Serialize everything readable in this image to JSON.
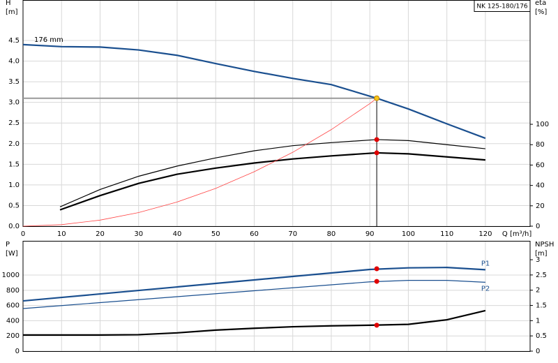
{
  "chart_data": [
    {
      "type": "line",
      "title": "NK 125-180/176",
      "ylabel": "H",
      "yunit": "[m]",
      "y2label": "eta",
      "y2unit": "[%]",
      "xlabel": "Q [m³/h]",
      "annotation": "176 mm",
      "xlim": [
        0,
        131.6
      ],
      "xticks": [
        0,
        10,
        20,
        30,
        40,
        50,
        60,
        70,
        80,
        90,
        100,
        110,
        120
      ],
      "ylim": [
        0,
        5.48
      ],
      "yticks": [
        {
          "value": 0,
          "label": "0.0"
        },
        0.5,
        {
          "value": 1,
          "label": "1.0"
        },
        1.5,
        {
          "value": 2,
          "label": "2.0"
        },
        2.5,
        {
          "value": 3,
          "label": "3.0"
        },
        3.5,
        {
          "value": 4,
          "label": "4.0"
        },
        4.5
      ],
      "y2lim": [
        0,
        222
      ],
      "y2ticks": [
        0,
        20,
        40,
        60,
        80,
        100
      ],
      "grid": true,
      "series": [
        {
          "color": "#1a4f8f",
          "weight": "bold",
          "x": [
            0,
            10,
            20,
            30,
            40,
            50,
            60,
            70,
            80,
            90,
            91.8,
            100,
            110,
            120
          ],
          "values": [
            4.4,
            4.35,
            4.34,
            4.27,
            4.14,
            3.94,
            3.75,
            3.58,
            3.43,
            3.15,
            3.1,
            2.84,
            2.48,
            2.13
          ]
        },
        {
          "color": "#000000",
          "weight": "normal",
          "axis": "y2",
          "x": [
            9.6,
            20,
            30,
            40,
            50,
            60,
            70,
            80,
            91.8,
            100,
            110,
            120
          ],
          "values": [
            19,
            36,
            49,
            59,
            67,
            74,
            79,
            82,
            85,
            84,
            80,
            76
          ]
        },
        {
          "color": "#000000",
          "weight": "bold",
          "axis": "y2",
          "x": [
            9.6,
            20,
            30,
            40,
            50,
            60,
            70,
            80,
            91.8,
            100,
            110,
            120
          ],
          "values": [
            16,
            30,
            42,
            51,
            57,
            62,
            66,
            69,
            72,
            71,
            68,
            65
          ]
        },
        {
          "color": "#ff4444",
          "weight": "thin",
          "x": [
            0,
            10,
            20,
            30,
            40,
            50,
            60,
            70,
            80,
            90,
            91.8
          ],
          "values": [
            0,
            0.037,
            0.147,
            0.33,
            0.586,
            0.916,
            1.32,
            1.79,
            2.34,
            2.97,
            3.1
          ]
        }
      ],
      "points": [
        {
          "x": 91.8,
          "y": 3.1,
          "color": "#f5c518"
        },
        {
          "x": 91.8,
          "y": 85,
          "axis": "y2",
          "color": "#e00000"
        },
        {
          "x": 91.8,
          "y": 72,
          "axis": "y2",
          "color": "#e00000"
        }
      ]
    },
    {
      "type": "line",
      "ylabel": "P",
      "yunit": "[W]",
      "y2label": "NPSH",
      "y2unit": "[m]",
      "xlim": [
        0,
        131.6
      ],
      "xticks": [
        0,
        10,
        20,
        30,
        40,
        50,
        60,
        70,
        80,
        90,
        100,
        110,
        120
      ],
      "xtick_labels": false,
      "ylim": [
        0,
        1450
      ],
      "yticks": [
        0,
        200,
        400,
        600,
        800,
        1000
      ],
      "y2lim": [
        0,
        3.62
      ],
      "y2ticks": [
        0,
        0.5,
        1,
        1.5,
        2,
        2.5,
        3
      ],
      "grid": true,
      "series": [
        {
          "name": "P1",
          "color": "#1a4f8f",
          "weight": "bold",
          "x": [
            0,
            10,
            20,
            30,
            40,
            50,
            60,
            70,
            80,
            90,
            100,
            110,
            120
          ],
          "values": [
            660,
            706,
            752,
            798,
            844,
            890,
            936,
            982,
            1028,
            1074,
            1095,
            1100,
            1070
          ]
        },
        {
          "name": "P2",
          "color": "#1a4f8f",
          "weight": "normal",
          "x": [
            0,
            10,
            20,
            30,
            40,
            50,
            60,
            70,
            80,
            90,
            100,
            110,
            120
          ],
          "values": [
            560,
            599,
            638,
            677,
            716,
            755,
            794,
            833,
            872,
            911,
            930,
            930,
            905
          ]
        },
        {
          "color": "#000000",
          "weight": "bold",
          "axis": "y2",
          "x": [
            0,
            10,
            20,
            30,
            40,
            50,
            60,
            70,
            80,
            90,
            100,
            110,
            120
          ],
          "values": [
            0.53,
            0.53,
            0.53,
            0.54,
            0.6,
            0.69,
            0.75,
            0.8,
            0.83,
            0.85,
            0.88,
            1.03,
            1.33
          ]
        }
      ],
      "points": [
        {
          "x": 91.8,
          "y": 1083,
          "color": "#e00000"
        },
        {
          "x": 91.8,
          "y": 917,
          "color": "#e00000"
        },
        {
          "x": 91.8,
          "y": 0.85,
          "axis": "y2",
          "color": "#e00000"
        }
      ]
    }
  ]
}
